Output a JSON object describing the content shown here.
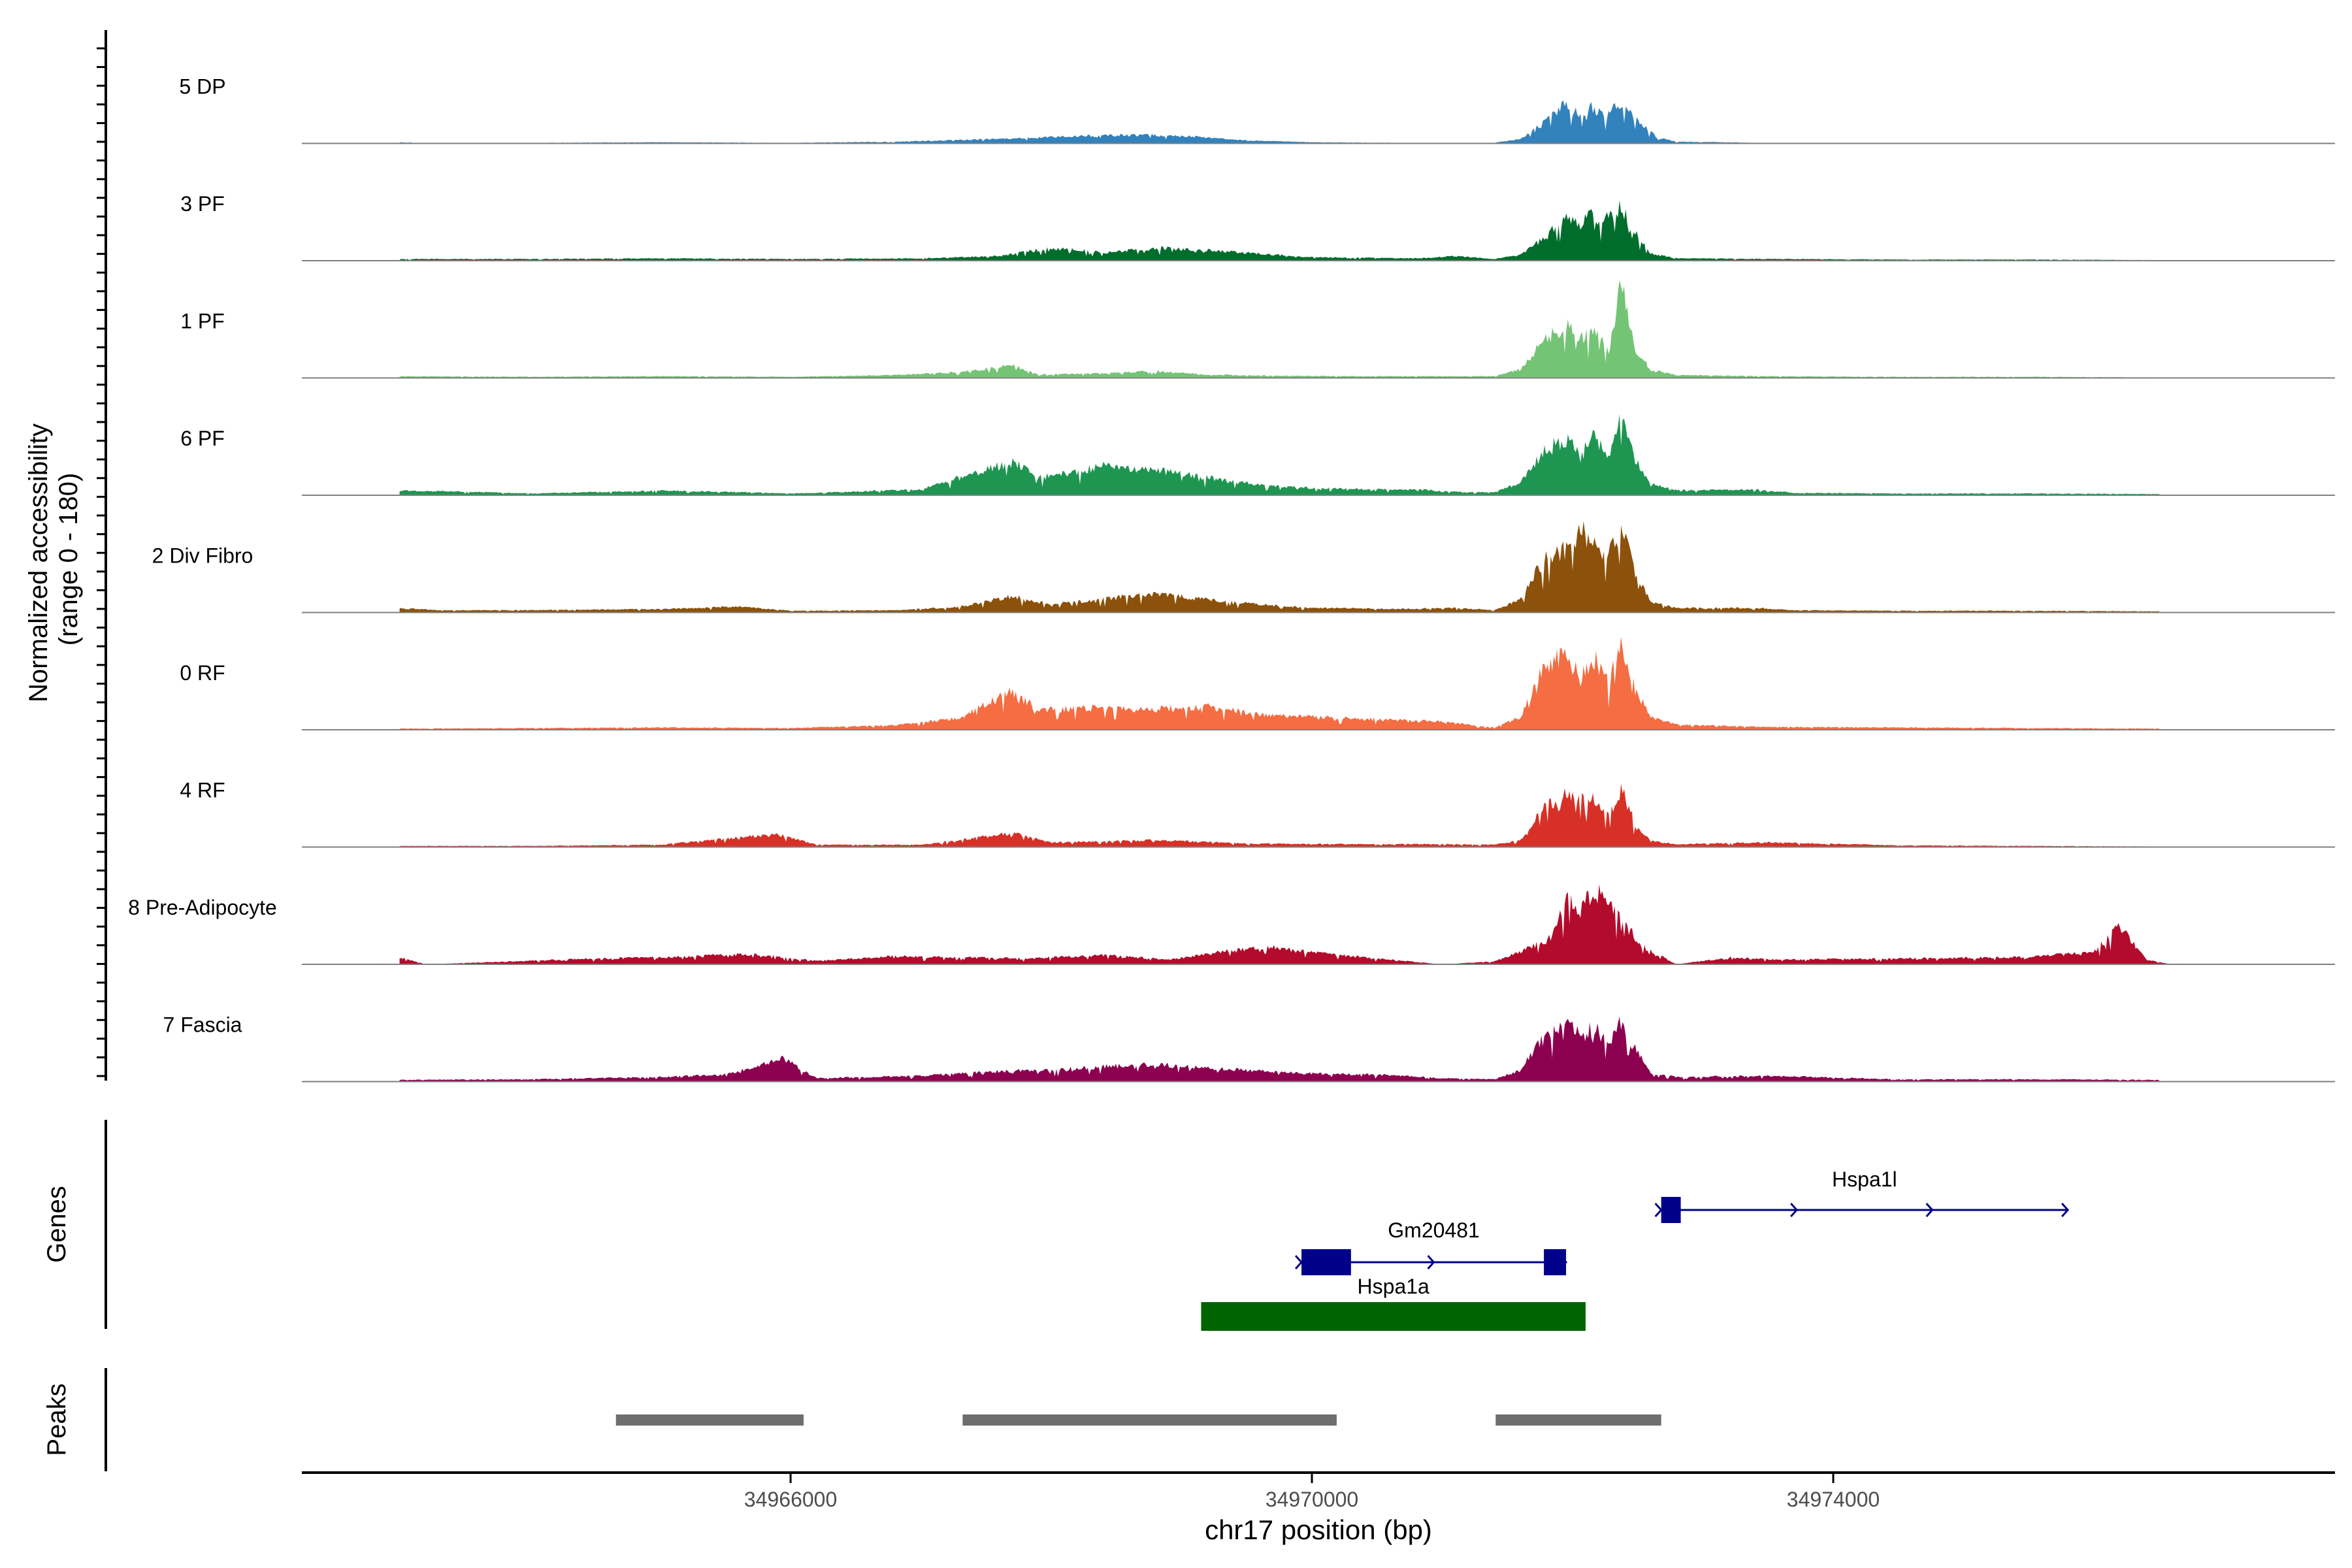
{
  "chart_data": {
    "type": "area",
    "title": "",
    "xlabel": "chr17 position (bp)",
    "ylabel": "Normalized accessibility\n(range 0 - 180)",
    "ylabel_line1": "Normalized accessibility",
    "ylabel_line2": "(range 0 - 180)",
    "ylim": [
      0,
      180
    ],
    "xlim": [
      34962250,
      34977850
    ],
    "x_ticks": [
      34966000,
      34970000,
      34974000
    ],
    "x_tick_labels": [
      "34966000",
      "34970000",
      "34974000"
    ],
    "genes_label": "Genes",
    "peaks_label": "Peaks",
    "tracks": [
      {
        "name": "5 DP",
        "color": "#3182bd",
        "profile": [
          [
            34963000,
            2
          ],
          [
            34963300,
            0
          ],
          [
            34964000,
            1
          ],
          [
            34965000,
            2
          ],
          [
            34966000,
            1
          ],
          [
            34966800,
            3
          ],
          [
            34967300,
            6
          ],
          [
            34967800,
            9
          ],
          [
            34968200,
            13
          ],
          [
            34968700,
            15
          ],
          [
            34969100,
            12
          ],
          [
            34969500,
            5
          ],
          [
            34970000,
            2
          ],
          [
            34970700,
            1
          ],
          [
            34971000,
            0
          ],
          [
            34971400,
            1
          ],
          [
            34971600,
            8
          ],
          [
            34971800,
            38
          ],
          [
            34971930,
            66
          ],
          [
            34972050,
            50
          ],
          [
            34972150,
            62
          ],
          [
            34972250,
            48
          ],
          [
            34972370,
            70
          ],
          [
            34972500,
            42
          ],
          [
            34972650,
            10
          ],
          [
            34972800,
            3
          ],
          [
            34973500,
            1
          ],
          [
            34974500,
            1
          ],
          [
            34976500,
            1
          ]
        ]
      },
      {
        "name": "3 PF",
        "color": "#006d2c",
        "profile": [
          [
            34963000,
            3
          ],
          [
            34964000,
            3
          ],
          [
            34965000,
            4
          ],
          [
            34966000,
            3
          ],
          [
            34967000,
            4
          ],
          [
            34967600,
            8
          ],
          [
            34968000,
            22
          ],
          [
            34968400,
            14
          ],
          [
            34968800,
            22
          ],
          [
            34969200,
            18
          ],
          [
            34969600,
            12
          ],
          [
            34970000,
            6
          ],
          [
            34970800,
            4
          ],
          [
            34971100,
            8
          ],
          [
            34971400,
            3
          ],
          [
            34971600,
            10
          ],
          [
            34971800,
            42
          ],
          [
            34971960,
            80
          ],
          [
            34972050,
            62
          ],
          [
            34972120,
            82
          ],
          [
            34972230,
            70
          ],
          [
            34972370,
            92
          ],
          [
            34972480,
            50
          ],
          [
            34972600,
            12
          ],
          [
            34972800,
            4
          ],
          [
            34973500,
            3
          ],
          [
            34974500,
            2
          ],
          [
            34975500,
            2
          ],
          [
            34976500,
            1
          ]
        ]
      },
      {
        "name": "1 PF",
        "color": "#74c476",
        "profile": [
          [
            34963000,
            3
          ],
          [
            34964000,
            2
          ],
          [
            34965000,
            3
          ],
          [
            34966000,
            2
          ],
          [
            34966800,
            5
          ],
          [
            34967300,
            10
          ],
          [
            34967700,
            22
          ],
          [
            34967900,
            6
          ],
          [
            34968400,
            8
          ],
          [
            34968800,
            12
          ],
          [
            34969200,
            6
          ],
          [
            34969700,
            4
          ],
          [
            34970400,
            3
          ],
          [
            34971000,
            3
          ],
          [
            34971400,
            3
          ],
          [
            34971600,
            15
          ],
          [
            34971800,
            70
          ],
          [
            34971960,
            88
          ],
          [
            34972080,
            70
          ],
          [
            34972160,
            82
          ],
          [
            34972280,
            48
          ],
          [
            34972370,
            168
          ],
          [
            34972480,
            52
          ],
          [
            34972600,
            14
          ],
          [
            34972800,
            5
          ],
          [
            34973500,
            3
          ],
          [
            34974500,
            2
          ],
          [
            34975500,
            2
          ],
          [
            34976500,
            1
          ]
        ]
      },
      {
        "name": "6 PF",
        "color": "#1e9651",
        "profile": [
          [
            34963000,
            8
          ],
          [
            34963500,
            6
          ],
          [
            34964000,
            3
          ],
          [
            34965000,
            8
          ],
          [
            34965500,
            6
          ],
          [
            34966000,
            3
          ],
          [
            34967000,
            10
          ],
          [
            34967700,
            58
          ],
          [
            34967900,
            30
          ],
          [
            34968400,
            50
          ],
          [
            34968800,
            44
          ],
          [
            34969200,
            30
          ],
          [
            34969600,
            18
          ],
          [
            34970000,
            12
          ],
          [
            34970800,
            10
          ],
          [
            34971100,
            6
          ],
          [
            34971400,
            5
          ],
          [
            34971600,
            22
          ],
          [
            34971800,
            80
          ],
          [
            34971960,
            98
          ],
          [
            34972060,
            68
          ],
          [
            34972160,
            102
          ],
          [
            34972280,
            62
          ],
          [
            34972370,
            145
          ],
          [
            34972480,
            62
          ],
          [
            34972600,
            20
          ],
          [
            34972800,
            9
          ],
          [
            34973400,
            10
          ],
          [
            34973700,
            4
          ],
          [
            34974500,
            3
          ],
          [
            34975500,
            3
          ],
          [
            34976500,
            2
          ]
        ]
      },
      {
        "name": "2 Div Fibro",
        "color": "#8c510a",
        "profile": [
          [
            34963000,
            8
          ],
          [
            34963300,
            4
          ],
          [
            34964000,
            4
          ],
          [
            34965000,
            6
          ],
          [
            34965600,
            10
          ],
          [
            34966000,
            3
          ],
          [
            34966800,
            4
          ],
          [
            34967300,
            10
          ],
          [
            34967700,
            28
          ],
          [
            34968000,
            14
          ],
          [
            34968400,
            24
          ],
          [
            34968800,
            32
          ],
          [
            34969200,
            22
          ],
          [
            34969600,
            14
          ],
          [
            34970000,
            8
          ],
          [
            34970700,
            6
          ],
          [
            34971100,
            8
          ],
          [
            34971400,
            4
          ],
          [
            34971600,
            22
          ],
          [
            34971800,
            100
          ],
          [
            34971950,
            110
          ],
          [
            34972080,
            140
          ],
          [
            34972180,
            110
          ],
          [
            34972280,
            105
          ],
          [
            34972370,
            148
          ],
          [
            34972480,
            70
          ],
          [
            34972600,
            18
          ],
          [
            34972800,
            8
          ],
          [
            34973400,
            8
          ],
          [
            34973700,
            4
          ],
          [
            34974500,
            3
          ],
          [
            34975500,
            3
          ],
          [
            34976500,
            2
          ]
        ]
      },
      {
        "name": "0 RF",
        "color": "#f46d43",
        "profile": [
          [
            34963000,
            2
          ],
          [
            34964000,
            3
          ],
          [
            34965000,
            4
          ],
          [
            34966000,
            3
          ],
          [
            34966800,
            8
          ],
          [
            34967300,
            20
          ],
          [
            34967700,
            68
          ],
          [
            34967900,
            34
          ],
          [
            34968400,
            38
          ],
          [
            34968800,
            36
          ],
          [
            34969200,
            40
          ],
          [
            34969600,
            26
          ],
          [
            34970000,
            22
          ],
          [
            34970500,
            18
          ],
          [
            34971000,
            14
          ],
          [
            34971400,
            4
          ],
          [
            34971600,
            22
          ],
          [
            34971800,
            118
          ],
          [
            34971960,
            125
          ],
          [
            34972060,
            90
          ],
          [
            34972160,
            130
          ],
          [
            34972280,
            78
          ],
          [
            34972370,
            152
          ],
          [
            34972480,
            70
          ],
          [
            34972600,
            22
          ],
          [
            34972800,
            9
          ],
          [
            34973500,
            5
          ],
          [
            34974500,
            4
          ],
          [
            34975500,
            3
          ],
          [
            34976500,
            2
          ]
        ]
      },
      {
        "name": "4 RF",
        "color": "#d73027",
        "profile": [
          [
            34963000,
            2
          ],
          [
            34964000,
            2
          ],
          [
            34965000,
            4
          ],
          [
            34965900,
            22
          ],
          [
            34966200,
            4
          ],
          [
            34967000,
            4
          ],
          [
            34967700,
            24
          ],
          [
            34968000,
            8
          ],
          [
            34968800,
            12
          ],
          [
            34969500,
            6
          ],
          [
            34970400,
            5
          ],
          [
            34971100,
            5
          ],
          [
            34971400,
            4
          ],
          [
            34971600,
            12
          ],
          [
            34971800,
            72
          ],
          [
            34971960,
            96
          ],
          [
            34972060,
            80
          ],
          [
            34972160,
            90
          ],
          [
            34972280,
            52
          ],
          [
            34972370,
            100
          ],
          [
            34972480,
            42
          ],
          [
            34972600,
            10
          ],
          [
            34972800,
            5
          ],
          [
            34973500,
            8
          ],
          [
            34974500,
            3
          ],
          [
            34975500,
            2
          ],
          [
            34976500,
            1
          ]
        ]
      },
      {
        "name": "8 Pre-Adipocyte",
        "color": "#b30b2b",
        "profile": [
          [
            34963000,
            12
          ],
          [
            34963200,
            0
          ],
          [
            34964500,
            10
          ],
          [
            34965000,
            12
          ],
          [
            34965700,
            18
          ],
          [
            34966200,
            6
          ],
          [
            34966800,
            14
          ],
          [
            34967300,
            12
          ],
          [
            34967800,
            10
          ],
          [
            34968400,
            16
          ],
          [
            34968900,
            8
          ],
          [
            34969300,
            22
          ],
          [
            34969700,
            30
          ],
          [
            34970000,
            20
          ],
          [
            34970400,
            12
          ],
          [
            34971000,
            0
          ],
          [
            34971400,
            5
          ],
          [
            34971550,
            18
          ],
          [
            34971800,
            40
          ],
          [
            34971960,
            108
          ],
          [
            34972060,
            96
          ],
          [
            34972160,
            132
          ],
          [
            34972280,
            100
          ],
          [
            34972400,
            68
          ],
          [
            34972560,
            28
          ],
          [
            34972800,
            0
          ],
          [
            34973200,
            12
          ],
          [
            34973600,
            8
          ],
          [
            34974500,
            10
          ],
          [
            34975200,
            12
          ],
          [
            34975500,
            12
          ],
          [
            34976000,
            22
          ],
          [
            34976200,
            68
          ],
          [
            34976400,
            8
          ],
          [
            34976600,
            0
          ]
        ]
      },
      {
        "name": "7 Fascia",
        "color": "#8c0050",
        "profile": [
          [
            34963000,
            3
          ],
          [
            34964000,
            4
          ],
          [
            34965000,
            8
          ],
          [
            34965500,
            12
          ],
          [
            34965950,
            40
          ],
          [
            34966200,
            6
          ],
          [
            34967000,
            10
          ],
          [
            34967600,
            18
          ],
          [
            34968000,
            20
          ],
          [
            34968400,
            26
          ],
          [
            34968800,
            30
          ],
          [
            34969200,
            24
          ],
          [
            34969600,
            18
          ],
          [
            34970000,
            14
          ],
          [
            34970500,
            12
          ],
          [
            34971000,
            6
          ],
          [
            34971400,
            4
          ],
          [
            34971600,
            20
          ],
          [
            34971800,
            82
          ],
          [
            34971960,
            100
          ],
          [
            34972060,
            78
          ],
          [
            34972160,
            94
          ],
          [
            34972280,
            72
          ],
          [
            34972370,
            108
          ],
          [
            34972480,
            56
          ],
          [
            34972600,
            14
          ],
          [
            34972800,
            8
          ],
          [
            34973500,
            10
          ],
          [
            34974500,
            4
          ],
          [
            34975500,
            4
          ],
          [
            34976500,
            3
          ]
        ]
      }
    ],
    "genes": [
      {
        "name": "Gm20481",
        "start": 34969920,
        "end": 34971950,
        "strand": "+",
        "color": "#00008b",
        "exons": [
          [
            34969920,
            34970300
          ],
          [
            34971780,
            34971950
          ]
        ]
      },
      {
        "name": "Hspa1a",
        "start": 34969150,
        "end": 34972100,
        "strand": "",
        "color": "#006400",
        "exons": [
          [
            34969150,
            34972100
          ]
        ]
      },
      {
        "name": "Hspa1l",
        "start": 34972680,
        "end": 34975800,
        "strand": "+",
        "color": "#00008b",
        "exons": [
          [
            34972680,
            34972830
          ]
        ]
      }
    ],
    "peaks": [
      {
        "start": 34964660,
        "end": 34966100
      },
      {
        "start": 34967320,
        "end": 34970190
      },
      {
        "start": 34971410,
        "end": 34972680
      }
    ]
  }
}
